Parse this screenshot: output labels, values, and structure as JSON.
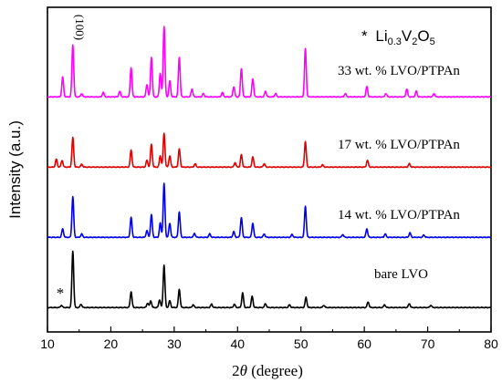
{
  "chart_data": {
    "type": "line",
    "xlabel_prefix": "2",
    "xlabel_symbol": "θ",
    "xlabel_suffix": " (degree)",
    "ylabel": "Intensity (a.u.)",
    "xlim": [
      10,
      80
    ],
    "xticks": [
      10,
      20,
      30,
      40,
      50,
      60,
      70,
      80
    ],
    "xtick_labels": [
      "10",
      "20",
      "30",
      "40",
      "50",
      "60",
      "70",
      "80"
    ],
    "y_tick_labels_shown": false,
    "annotations": {
      "peak_label": "(100)",
      "marker": "*",
      "legend_star": "*",
      "formula": {
        "a": "Li",
        "a_sub": "0.3",
        "b": "V",
        "b_sub": "2",
        "c": "O",
        "c_sub": "5"
      }
    },
    "series": [
      {
        "name": "bare LVO",
        "color": "#000000",
        "offset": 0,
        "peaks": [
          [
            12.2,
            0.04
          ],
          [
            14.0,
            1.0
          ],
          [
            15.3,
            0.06
          ],
          [
            23.2,
            0.28
          ],
          [
            25.8,
            0.08
          ],
          [
            26.3,
            0.12
          ],
          [
            27.7,
            0.14
          ],
          [
            28.4,
            0.75
          ],
          [
            29.3,
            0.12
          ],
          [
            30.8,
            0.32
          ],
          [
            33.0,
            0.05
          ],
          [
            35.9,
            0.06
          ],
          [
            39.5,
            0.06
          ],
          [
            40.8,
            0.26
          ],
          [
            42.3,
            0.2
          ],
          [
            44.4,
            0.07
          ],
          [
            48.2,
            0.05
          ],
          [
            50.8,
            0.18
          ],
          [
            53.6,
            0.04
          ],
          [
            60.6,
            0.1
          ],
          [
            63.2,
            0.05
          ],
          [
            67.1,
            0.07
          ],
          [
            70.5,
            0.04
          ]
        ]
      },
      {
        "name": "14 wt. % LVO/PTPAn",
        "color": "#0000ee",
        "offset": 1,
        "peaks": [
          [
            12.4,
            0.15
          ],
          [
            14.0,
            0.72
          ],
          [
            15.4,
            0.06
          ],
          [
            23.2,
            0.35
          ],
          [
            25.7,
            0.12
          ],
          [
            26.4,
            0.4
          ],
          [
            27.8,
            0.25
          ],
          [
            28.4,
            0.95
          ],
          [
            29.3,
            0.25
          ],
          [
            30.8,
            0.45
          ],
          [
            33.2,
            0.07
          ],
          [
            35.6,
            0.06
          ],
          [
            39.4,
            0.1
          ],
          [
            40.6,
            0.35
          ],
          [
            42.4,
            0.25
          ],
          [
            44.2,
            0.06
          ],
          [
            48.6,
            0.05
          ],
          [
            50.7,
            0.55
          ],
          [
            56.6,
            0.05
          ],
          [
            60.4,
            0.15
          ],
          [
            63.3,
            0.06
          ],
          [
            67.2,
            0.08
          ],
          [
            69.4,
            0.04
          ]
        ]
      },
      {
        "name": "17 wt. % LVO/PTPAn",
        "color": "#e00000",
        "offset": 2,
        "peaks": [
          [
            11.4,
            0.14
          ],
          [
            12.3,
            0.12
          ],
          [
            14.0,
            0.52
          ],
          [
            15.4,
            0.05
          ],
          [
            23.2,
            0.3
          ],
          [
            25.7,
            0.12
          ],
          [
            26.4,
            0.4
          ],
          [
            27.8,
            0.2
          ],
          [
            28.4,
            0.6
          ],
          [
            29.3,
            0.2
          ],
          [
            30.8,
            0.32
          ],
          [
            33.3,
            0.06
          ],
          [
            39.6,
            0.08
          ],
          [
            40.6,
            0.22
          ],
          [
            42.4,
            0.18
          ],
          [
            44.2,
            0.06
          ],
          [
            50.7,
            0.45
          ],
          [
            53.4,
            0.04
          ],
          [
            60.5,
            0.12
          ],
          [
            67.1,
            0.06
          ]
        ]
      },
      {
        "name": "33 wt. % LVO/PTPAn",
        "color": "#ff00ff",
        "offset": 3,
        "peaks": [
          [
            12.4,
            0.35
          ],
          [
            14.0,
            0.92
          ],
          [
            15.4,
            0.06
          ],
          [
            18.8,
            0.08
          ],
          [
            21.4,
            0.1
          ],
          [
            23.2,
            0.52
          ],
          [
            25.7,
            0.22
          ],
          [
            26.4,
            0.7
          ],
          [
            27.8,
            0.42
          ],
          [
            28.4,
            1.25
          ],
          [
            29.3,
            0.28
          ],
          [
            30.8,
            0.7
          ],
          [
            32.8,
            0.14
          ],
          [
            34.6,
            0.06
          ],
          [
            37.6,
            0.08
          ],
          [
            39.4,
            0.18
          ],
          [
            40.6,
            0.5
          ],
          [
            42.4,
            0.32
          ],
          [
            44.4,
            0.1
          ],
          [
            46.0,
            0.06
          ],
          [
            50.7,
            0.85
          ],
          [
            57.0,
            0.06
          ],
          [
            60.4,
            0.18
          ],
          [
            63.4,
            0.06
          ],
          [
            66.7,
            0.14
          ],
          [
            68.2,
            0.1
          ],
          [
            71.0,
            0.06
          ]
        ]
      }
    ]
  }
}
